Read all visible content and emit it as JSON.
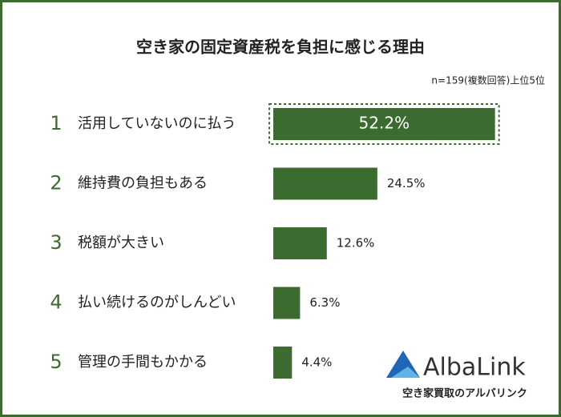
{
  "chart_data": {
    "type": "hbar",
    "title": "空き家の固定資産税を負担に感じる理由",
    "subtitle": "n=159(複数回答)上位5位",
    "ranks": [
      1,
      2,
      3,
      4,
      5
    ],
    "categories": [
      "活用していないのに払う",
      "維持費の負担もある",
      "税額が大きい",
      "払い続けるのがしんどい",
      "管理の手間もかかる"
    ],
    "values": [
      52.2,
      24.5,
      12.6,
      6.3,
      4.4
    ],
    "value_labels": [
      "52.2%",
      "24.5%",
      "12.6%",
      "6.3%",
      "4.4%"
    ],
    "color": "#3c6b30",
    "highlight_index": 0,
    "brand": {
      "name": "AlbaLink",
      "tagline": "空き家買取のアルバリンク"
    }
  }
}
